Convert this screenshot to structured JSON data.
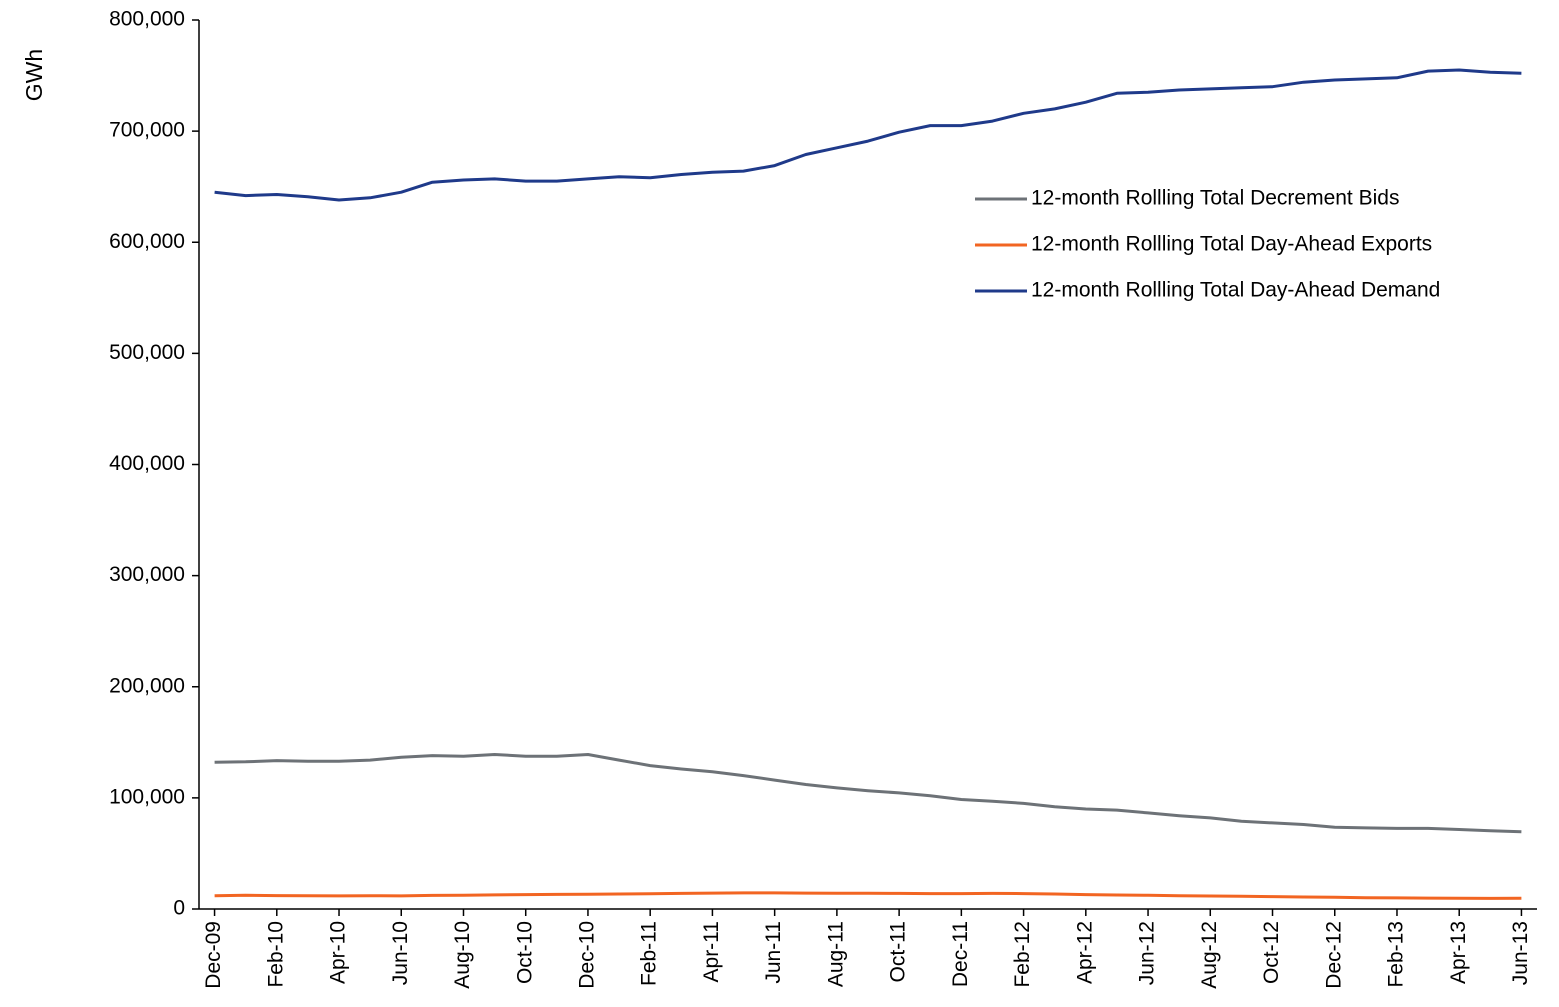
{
  "chart_data": {
    "type": "line",
    "y_label": "GWh",
    "categories": [
      "Dec-09",
      null,
      "Feb-10",
      null,
      "Apr-10",
      null,
      "Jun-10",
      null,
      "Aug-10",
      null,
      "Oct-10",
      null,
      "Dec-10",
      null,
      "Feb-11",
      null,
      "Apr-11",
      null,
      "Jun-11",
      null,
      "Aug-11",
      null,
      "Oct-11",
      null,
      "Dec-11",
      null,
      "Feb-12",
      null,
      "Apr-12",
      null,
      "Jun-12",
      null,
      "Aug-12",
      null,
      "Oct-12",
      null,
      "Dec-12",
      null,
      "Feb-13",
      null,
      "Apr-13",
      null,
      "Jun-13"
    ],
    "series": [
      {
        "name": "12-month Rollling Total Decrement Bids",
        "color": "#6d7277",
        "values": [
          132000,
          132500,
          133500,
          133000,
          133000,
          134000,
          136500,
          138000,
          137500,
          139000,
          137500,
          137500,
          139000,
          134000,
          129000,
          126000,
          123500,
          120000,
          116000,
          112000,
          109000,
          106500,
          104500,
          102000,
          98500,
          97000,
          95000,
          92000,
          90000,
          89000,
          86500,
          84000,
          82000,
          79000,
          77500,
          76000,
          73500,
          73000,
          72500,
          72500,
          71500,
          70500,
          69500
        ]
      },
      {
        "name": "12-month Rollling Total Day-Ahead Exports",
        "color": "#f26522",
        "values": [
          12000,
          12300,
          12100,
          12000,
          11800,
          12000,
          11800,
          12200,
          12400,
          12700,
          13000,
          13100,
          13200,
          13500,
          13800,
          14000,
          14300,
          14500,
          14500,
          14300,
          14200,
          14100,
          14000,
          13900,
          13900,
          14000,
          13900,
          13500,
          13000,
          12600,
          12300,
          12000,
          11700,
          11400,
          11200,
          10800,
          10500,
          10200,
          10000,
          9800,
          9600,
          9500,
          9600
        ]
      },
      {
        "name": "12-month Rollling Total Day-Ahead Demand",
        "color": "#1f3a8a",
        "values": [
          645000,
          642000,
          643000,
          641000,
          638000,
          640000,
          645000,
          654000,
          656000,
          657000,
          655000,
          655000,
          657000,
          659000,
          658000,
          661000,
          663000,
          664000,
          669000,
          679000,
          685000,
          691000,
          699000,
          705000,
          705000,
          709000,
          716000,
          720000,
          726000,
          734000,
          735000,
          737000,
          738000,
          739000,
          740000,
          744000,
          746000,
          747000,
          748000,
          754000,
          755000,
          753000,
          752000
        ]
      }
    ],
    "ylim": [
      0,
      800000
    ],
    "yticks": [
      0,
      {
        "value": 100000,
        "label": "100,000"
      },
      {
        "value": 200000,
        "label": "200,000"
      },
      {
        "value": 300000,
        "label": "300,000"
      },
      {
        "value": 400000,
        "label": "400,000"
      },
      {
        "value": 500000,
        "label": "500,000"
      },
      {
        "value": 600000,
        "label": "600,000"
      },
      {
        "value": 700000,
        "label": "700,000"
      },
      {
        "value": 800000,
        "label": "800,000"
      }
    ],
    "grid": false,
    "legend": "upper-right"
  }
}
